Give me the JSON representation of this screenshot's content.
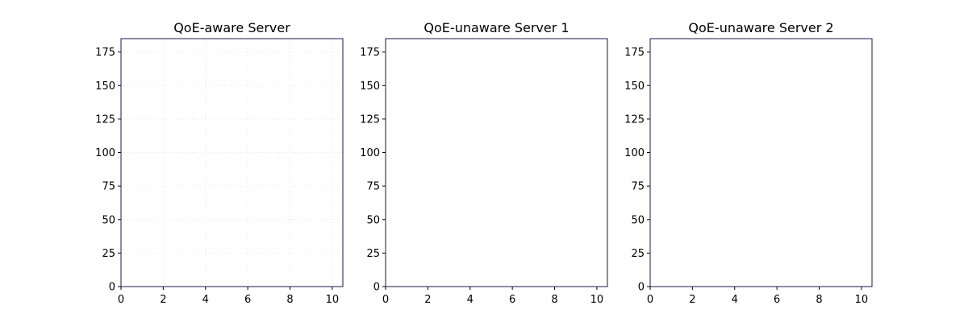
{
  "chart_data": [
    {
      "type": "line",
      "title": "QoE-aware Server",
      "xlabel": "",
      "ylabel": "",
      "xlim": [
        0,
        10.5
      ],
      "ylim": [
        0,
        185
      ],
      "xticks": [
        0,
        2,
        4,
        6,
        8,
        10
      ],
      "yticks": [
        0,
        25,
        50,
        75,
        100,
        125,
        150,
        175
      ],
      "grid": true,
      "series": []
    },
    {
      "type": "line",
      "title": "QoE-unaware Server 1",
      "xlabel": "",
      "ylabel": "",
      "xlim": [
        0,
        10.5
      ],
      "ylim": [
        0,
        185
      ],
      "xticks": [
        0,
        2,
        4,
        6,
        8,
        10
      ],
      "yticks": [
        0,
        25,
        50,
        75,
        100,
        125,
        150,
        175
      ],
      "grid": false,
      "series": []
    },
    {
      "type": "line",
      "title": "QoE-unaware Server 2",
      "xlabel": "",
      "ylabel": "",
      "xlim": [
        0,
        10.5
      ],
      "ylim": [
        0,
        185
      ],
      "xticks": [
        0,
        2,
        4,
        6,
        8,
        10
      ],
      "yticks": [
        0,
        25,
        50,
        75,
        100,
        125,
        150,
        175
      ],
      "grid": false,
      "series": []
    }
  ]
}
